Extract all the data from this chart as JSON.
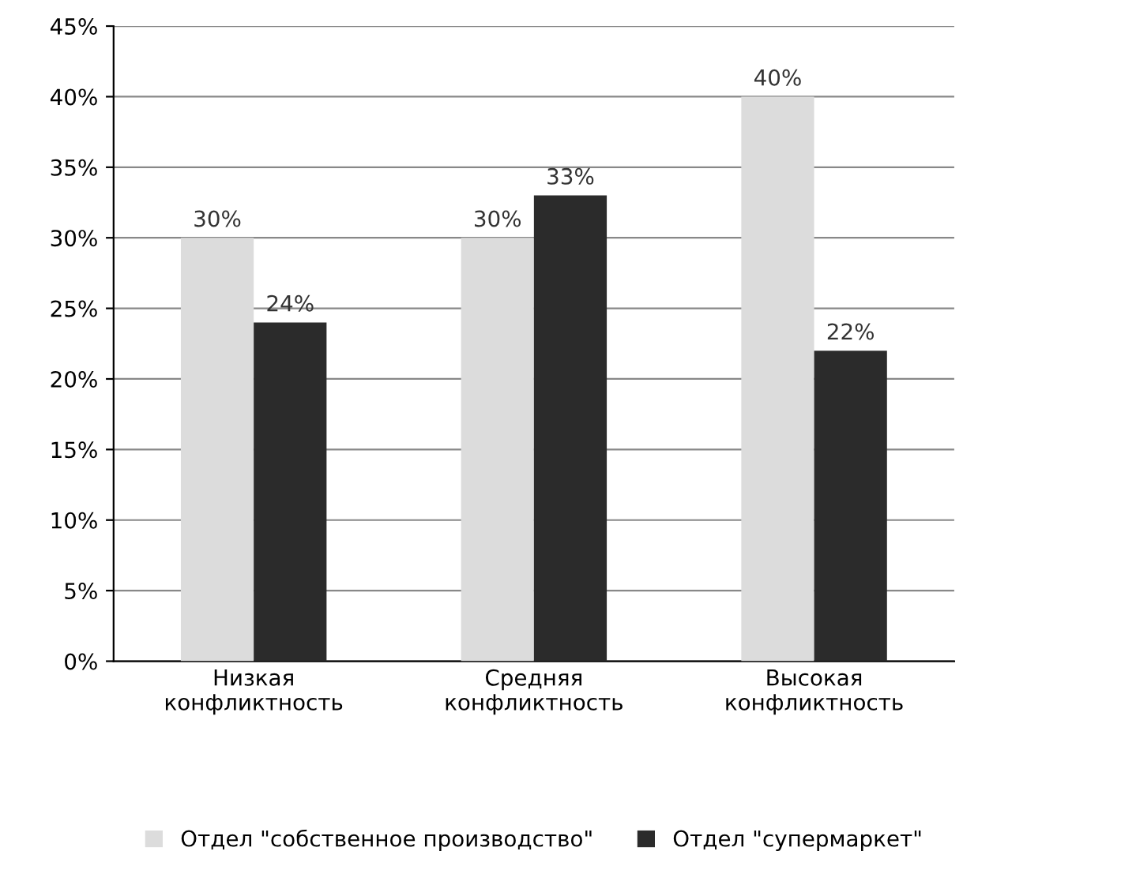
{
  "chart_data": {
    "type": "bar",
    "categories": [
      "Низкая\nконфликтность",
      "Средняя\nконфликтность",
      "Высокая\nконфликтность"
    ],
    "series": [
      {
        "name": "Отдел \"собственное производство\"",
        "color": "#dcdcdc",
        "values": [
          30,
          30,
          40
        ],
        "value_labels": [
          "30%",
          "30%",
          "40%"
        ]
      },
      {
        "name": "Отдел \"супермаркет\"",
        "color": "#2b2b2b",
        "values": [
          24,
          33,
          22
        ],
        "value_labels": [
          "24%",
          "33%",
          "22%"
        ]
      }
    ],
    "ylim": [
      0,
      45
    ],
    "yticks": [
      {
        "value": 0,
        "label": "0%"
      },
      {
        "value": 5,
        "label": "5%"
      },
      {
        "value": 10,
        "label": "10%"
      },
      {
        "value": 15,
        "label": "15%"
      },
      {
        "value": 20,
        "label": "20%"
      },
      {
        "value": 25,
        "label": "25%"
      },
      {
        "value": 30,
        "label": "30%"
      },
      {
        "value": 35,
        "label": "35%"
      },
      {
        "value": 40,
        "label": "40%"
      },
      {
        "value": 45,
        "label": "45%"
      }
    ],
    "grid": "y",
    "legend": "bottom"
  }
}
